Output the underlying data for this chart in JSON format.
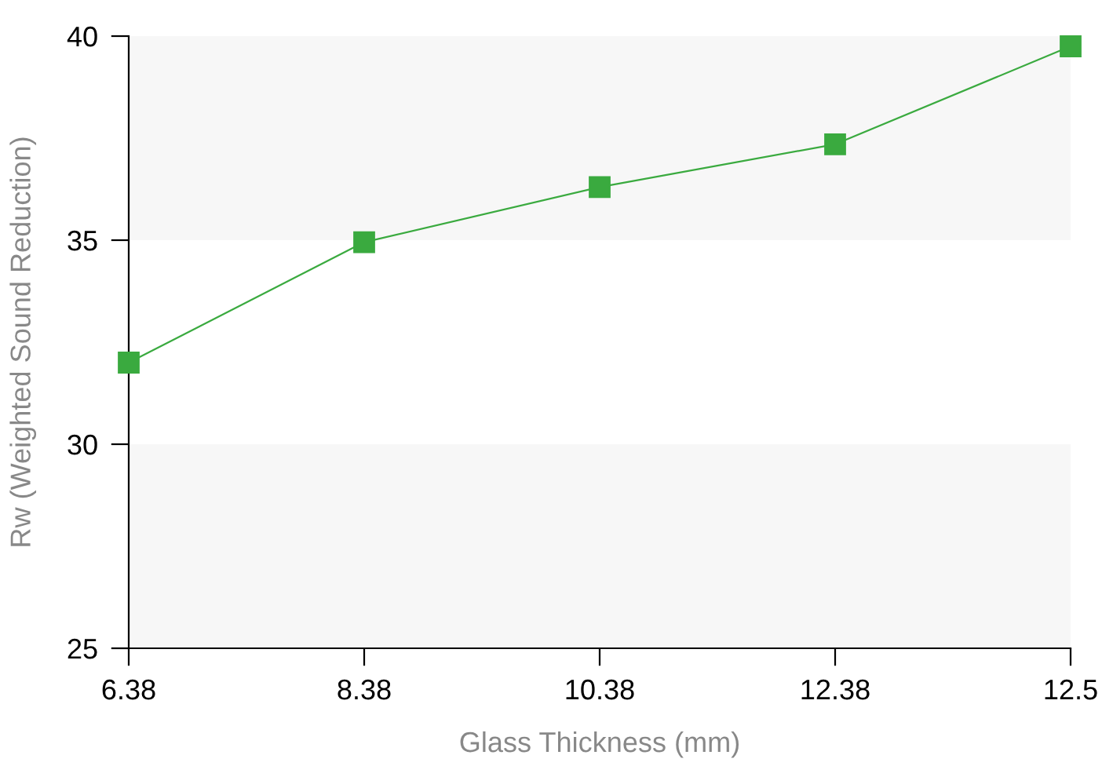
{
  "chart_data": {
    "type": "line",
    "xlabel": "Glass Thickness (mm)",
    "ylabel": "Rw (Weighted Sound Reduction)",
    "categories": [
      "6.38",
      "8.38",
      "10.38",
      "12.38",
      "12.5"
    ],
    "series": [
      {
        "color": "#3aaa3f",
        "values": [
          32.0,
          34.95,
          36.3,
          37.35,
          39.75
        ]
      }
    ],
    "ylim": [
      25,
      40
    ],
    "yticks": [
      25,
      30,
      35,
      40
    ],
    "marker": "square",
    "line_style": "solid",
    "grid": false,
    "bands": [
      {
        "axis": "y",
        "from": 35,
        "to": 40,
        "color": "#f7f7f7"
      },
      {
        "axis": "y",
        "from": 25,
        "to": 30,
        "color": "#f7f7f7"
      }
    ]
  }
}
